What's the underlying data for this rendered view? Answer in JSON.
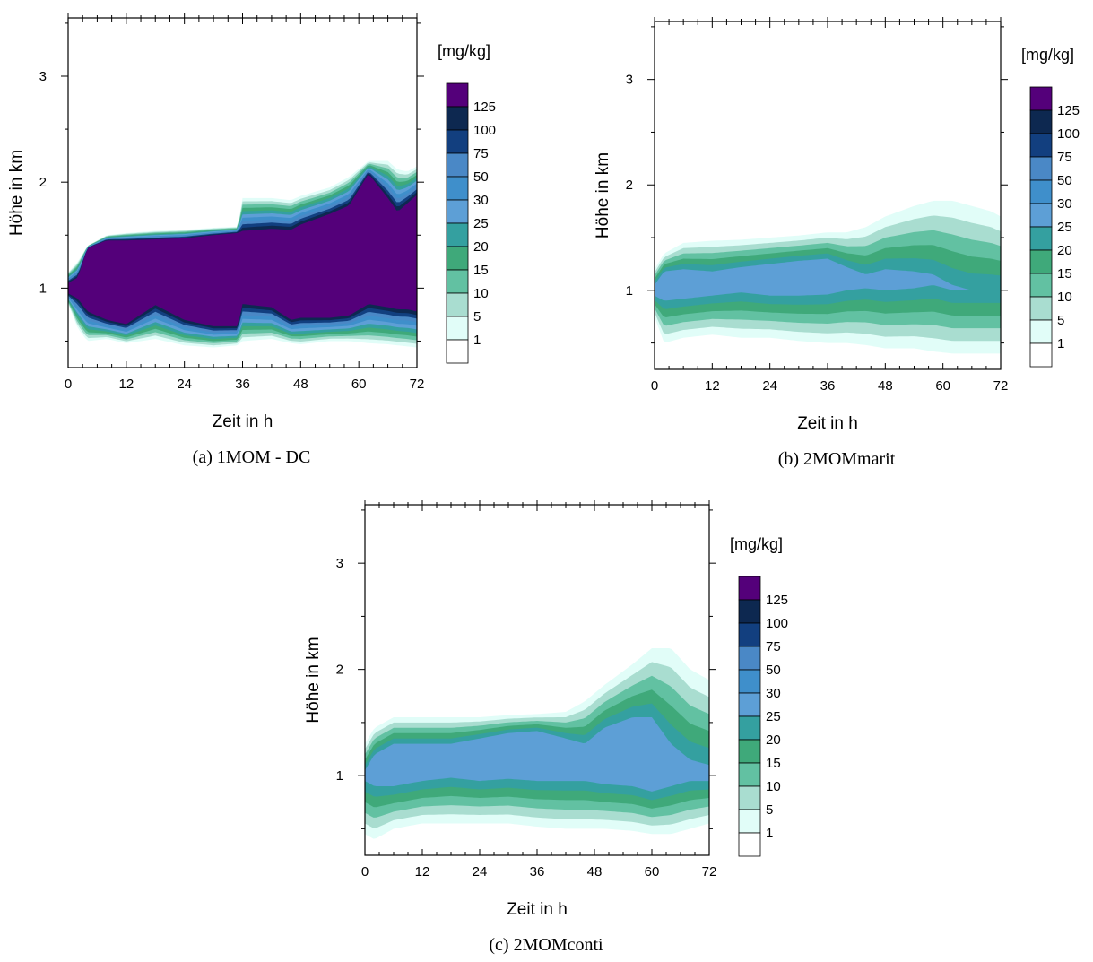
{
  "colors": {
    "levels": [
      "#ffffff",
      "#e1fdf8",
      "#a9ddd0",
      "#62c1a2",
      "#3fa97a",
      "#34a0a0",
      "#5d9fd6",
      "#3f8fcb",
      "#4a88c6",
      "#123f7f",
      "#0d2850",
      "#54007a"
    ],
    "frame": "#000000"
  },
  "chart_data": [
    {
      "id": "a",
      "type": "heatmap",
      "caption": "(a) 1MOM - DC",
      "xlabel": "Zeit in h",
      "ylabel": "Höhe in km",
      "unit": "[mg/kg]",
      "x_ticks": [
        "0",
        "12",
        "24",
        "36",
        "48",
        "60",
        "72"
      ],
      "y_ticks": [
        "1",
        "2",
        "3"
      ],
      "xlim": [
        0,
        72
      ],
      "ylim": [
        0.25,
        3.55
      ],
      "levels": [
        "1",
        "5",
        "10",
        "15",
        "20",
        "25",
        "30",
        "50",
        "75",
        "100",
        "125"
      ],
      "profile": {
        "t": [
          0,
          2,
          4,
          8,
          12,
          18,
          24,
          30,
          35,
          36,
          42,
          46,
          48,
          54,
          58,
          62,
          66,
          68,
          70,
          72
        ],
        "top": [
          1.15,
          1.25,
          1.4,
          1.5,
          1.52,
          1.54,
          1.55,
          1.57,
          1.58,
          1.85,
          1.85,
          1.83,
          1.87,
          1.95,
          2.05,
          2.2,
          2.2,
          2.12,
          2.1,
          2.15
        ],
        "bottom": [
          0.85,
          0.62,
          0.5,
          0.52,
          0.48,
          0.52,
          0.46,
          0.44,
          0.46,
          0.5,
          0.52,
          0.48,
          0.47,
          0.5,
          0.5,
          0.48,
          0.47,
          0.46,
          0.45,
          0.44
        ],
        "core_top": [
          1.05,
          1.1,
          1.38,
          1.45,
          1.45,
          1.46,
          1.47,
          1.5,
          1.52,
          1.54,
          1.56,
          1.55,
          1.6,
          1.7,
          1.78,
          2.08,
          1.85,
          1.72,
          1.8,
          1.88
        ],
        "core_bottom": [
          0.95,
          0.9,
          0.78,
          0.7,
          0.66,
          0.84,
          0.7,
          0.64,
          0.64,
          0.85,
          0.82,
          0.7,
          0.72,
          0.72,
          0.74,
          0.85,
          0.82,
          0.8,
          0.8,
          0.78
        ],
        "peak": 11
      }
    },
    {
      "id": "b",
      "type": "heatmap",
      "caption": "(b) 2MOMmarit",
      "xlabel": "Zeit in h",
      "ylabel": "Höhe in km",
      "unit": "[mg/kg]",
      "x_ticks": [
        "0",
        "12",
        "24",
        "36",
        "48",
        "60",
        "72"
      ],
      "y_ticks": [
        "1",
        "2",
        "3"
      ],
      "xlim": [
        0,
        72
      ],
      "ylim": [
        0.25,
        3.55
      ],
      "levels": [
        "1",
        "5",
        "10",
        "15",
        "20",
        "25",
        "30",
        "50",
        "75",
        "100",
        "125"
      ],
      "profile": {
        "t": [
          0,
          2,
          6,
          12,
          18,
          24,
          30,
          36,
          40,
          44,
          48,
          54,
          58,
          62,
          66,
          70,
          72
        ],
        "top": [
          1.2,
          1.35,
          1.45,
          1.47,
          1.48,
          1.5,
          1.52,
          1.55,
          1.55,
          1.6,
          1.7,
          1.8,
          1.85,
          1.85,
          1.8,
          1.75,
          1.7
        ],
        "bottom": [
          0.75,
          0.5,
          0.55,
          0.58,
          0.55,
          0.55,
          0.52,
          0.5,
          0.5,
          0.48,
          0.45,
          0.45,
          0.42,
          0.4,
          0.4,
          0.4,
          0.4
        ],
        "core_top": [
          1.05,
          1.18,
          1.2,
          1.18,
          1.22,
          1.25,
          1.28,
          1.3,
          1.22,
          1.15,
          1.2,
          1.18,
          1.15,
          1.05,
          1.0,
          1.0,
          1.0
        ],
        "core_bottom": [
          0.95,
          0.9,
          0.92,
          0.95,
          0.98,
          0.95,
          0.95,
          0.96,
          1.0,
          1.02,
          1.0,
          1.02,
          1.05,
          1.0,
          1.0,
          1.0,
          1.0
        ],
        "peak": 6
      }
    },
    {
      "id": "c",
      "type": "heatmap",
      "caption": "(c) 2MOMconti",
      "xlabel": "Zeit in h",
      "ylabel": "Höhe in km",
      "unit": "[mg/kg]",
      "x_ticks": [
        "0",
        "12",
        "24",
        "36",
        "48",
        "60",
        "72"
      ],
      "y_ticks": [
        "1",
        "2",
        "3"
      ],
      "xlim": [
        0,
        72
      ],
      "ylim": [
        0.25,
        3.55
      ],
      "levels": [
        "1",
        "5",
        "10",
        "15",
        "20",
        "25",
        "30",
        "50",
        "75",
        "100",
        "125"
      ],
      "profile": {
        "t": [
          0,
          2,
          6,
          12,
          18,
          24,
          30,
          36,
          42,
          46,
          50,
          56,
          60,
          64,
          68,
          72
        ],
        "top": [
          1.3,
          1.45,
          1.55,
          1.55,
          1.55,
          1.55,
          1.57,
          1.58,
          1.6,
          1.7,
          1.85,
          2.05,
          2.2,
          2.2,
          2.0,
          1.9
        ],
        "bottom": [
          0.45,
          0.4,
          0.5,
          0.55,
          0.55,
          0.55,
          0.55,
          0.52,
          0.5,
          0.5,
          0.5,
          0.48,
          0.45,
          0.45,
          0.5,
          0.55
        ],
        "core_top": [
          1.05,
          1.2,
          1.3,
          1.3,
          1.3,
          1.35,
          1.4,
          1.42,
          1.35,
          1.3,
          1.45,
          1.55,
          1.55,
          1.3,
          1.15,
          1.1
        ],
        "core_bottom": [
          0.95,
          0.9,
          0.9,
          0.95,
          0.98,
          0.95,
          0.97,
          0.95,
          0.95,
          0.95,
          0.92,
          0.9,
          0.85,
          0.9,
          0.95,
          0.95
        ],
        "peak": 6
      }
    }
  ]
}
